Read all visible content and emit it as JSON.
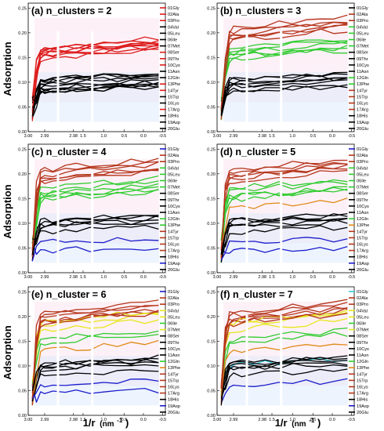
{
  "chart_data": [
    {
      "type": "line",
      "title": "(a) n_clusters = 2",
      "palette": [
        "#000000",
        "#dd1c1c"
      ],
      "clusters": [
        1,
        1,
        1,
        0,
        0,
        0,
        0,
        1,
        1,
        1,
        0,
        0,
        1,
        1,
        0,
        0,
        1,
        0,
        0,
        0
      ],
      "hlines": [
        0.06,
        0.095,
        0.13,
        0.155,
        0.17,
        0.2
      ]
    },
    {
      "type": "line",
      "title": "(b) n_clusters = 3",
      "palette": [
        "#000000",
        "#2ecc2e",
        "#b5361c"
      ],
      "clusters": [
        0,
        2,
        2,
        1,
        1,
        1,
        1,
        0,
        0,
        0,
        0,
        1,
        1,
        2,
        2,
        2,
        2,
        0,
        0,
        0
      ],
      "hlines": [
        0.06,
        0.095,
        0.13,
        0.155,
        0.17,
        0.2
      ]
    },
    {
      "type": "line",
      "title": "(c) n_cluster = 4",
      "palette": [
        "#000000",
        "#2ecc2e",
        "#b5361c",
        "#1c1ccc"
      ],
      "clusters": [
        3,
        2,
        2,
        1,
        1,
        1,
        1,
        0,
        0,
        0,
        0,
        1,
        1,
        2,
        2,
        2,
        2,
        0,
        3,
        0
      ],
      "hlines": [
        0.06,
        0.095,
        0.13,
        0.155,
        0.17,
        0.2
      ]
    },
    {
      "type": "line",
      "title": "(d) n_cluster = 5",
      "palette": [
        "#000000",
        "#2ecc2e",
        "#b5361c",
        "#1c1ccc",
        "#e08a1a"
      ],
      "clusters": [
        3,
        2,
        2,
        1,
        1,
        1,
        1,
        0,
        0,
        0,
        0,
        1,
        4,
        2,
        2,
        2,
        2,
        0,
        3,
        0
      ],
      "hlines": [
        0.06,
        0.095,
        0.13,
        0.155,
        0.17,
        0.2
      ]
    },
    {
      "type": "line",
      "title": "(e) n_cluster = 6",
      "palette": [
        "#000000",
        "#2ecc2e",
        "#b5361c",
        "#1c1ccc",
        "#e08a1a",
        "#e6e61a"
      ],
      "clusters": [
        3,
        2,
        2,
        5,
        5,
        1,
        5,
        0,
        0,
        0,
        0,
        1,
        4,
        2,
        2,
        2,
        2,
        0,
        3,
        0
      ],
      "hlines": [
        0.06,
        0.095,
        0.13,
        0.155,
        0.17,
        0.2
      ]
    },
    {
      "type": "line",
      "title": "(f) n_cluster = 7",
      "palette": [
        "#000000",
        "#2ecc2e",
        "#b5361c",
        "#1c1ccc",
        "#e08a1a",
        "#e6e61a",
        "#38c8d8"
      ],
      "clusters": [
        6,
        2,
        2,
        5,
        5,
        1,
        5,
        0,
        0,
        0,
        0,
        1,
        4,
        2,
        2,
        2,
        2,
        0,
        3,
        0
      ],
      "hlines": [
        0.06,
        0.095,
        0.13,
        0.155,
        0.17,
        0.2
      ]
    }
  ],
  "shared": {
    "ylabel": "Adsorption",
    "xlabel_base": "1/r",
    "xlabel_unit": "(nm",
    "xlabel_exp": "-1",
    "xlabel_close": ")",
    "series_names": [
      "01Gly",
      "02Ala",
      "03Pro",
      "04Val",
      "05Leu",
      "06Ile",
      "07Met",
      "08Ser",
      "09Thr",
      "10Cys",
      "11Asn",
      "12Gln",
      "13Phe",
      "14Tyr",
      "15Trp",
      "16Lys",
      "17Arg",
      "18His",
      "19Asp",
      "20Glu"
    ],
    "y_ticks": [
      "0.00",
      "0.05",
      "0.10",
      "0.15",
      "0.20",
      "0.25"
    ],
    "y_values": [
      0,
      0.05,
      0.1,
      0.15,
      0.2,
      0.25
    ],
    "ylim": [
      0,
      0.26
    ],
    "x_ticks_seg1": [
      "3.00",
      "2.99"
    ],
    "x_ticks_seg2": [
      "2.98",
      "1.5"
    ],
    "x_ticks_seg3": [
      "1.0",
      "0.5",
      "0.0",
      "-0.5"
    ]
  }
}
